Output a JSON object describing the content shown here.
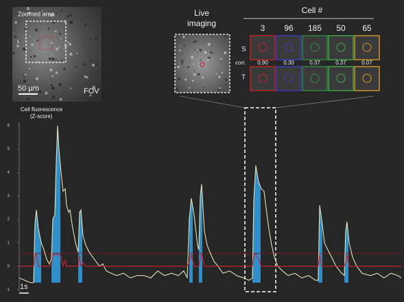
{
  "panels": {
    "fov": {
      "zoom_label": "Zoomed area",
      "scale_label": "50 µm",
      "label": "FOV"
    },
    "live": {
      "label": [
        "Live",
        "imaging"
      ]
    },
    "cells": {
      "title": "Cell #",
      "row_s": "S",
      "row_corr": "corr.",
      "row_t": "T",
      "items": [
        {
          "label": "3",
          "corr": "0.90",
          "color": "#c8232c"
        },
        {
          "label": "96",
          "corr": "0.30",
          "color": "#3c3cc0"
        },
        {
          "label": "185",
          "corr": "0.37",
          "color": "#2f8f40"
        },
        {
          "label": "50",
          "corr": "0.37",
          "color": "#3cb04a"
        },
        {
          "label": "65",
          "corr": "0.07",
          "color": "#d89a2a"
        }
      ]
    }
  },
  "chart_data": {
    "type": "line",
    "ylabel": [
      "Cell fluorescence",
      "(Z-score)"
    ],
    "x": [
      0,
      0.57,
      1.14,
      1.5,
      1.64,
      1.79,
      2,
      2.29,
      2.57,
      2.86,
      3.14,
      3.36,
      3.5,
      3.71,
      3.86,
      4,
      4.14,
      4.36,
      4.57,
      4.79,
      4.93,
      5.14,
      5.29,
      5.5,
      5.86,
      6.14,
      6.29,
      6.43,
      6.64,
      6.93,
      7.29,
      7.64,
      8,
      8.36,
      8.71,
      9.07,
      9.57,
      10.14,
      10.86,
      11.57,
      12.29,
      13,
      13.71,
      14.43,
      15.14,
      15.86,
      16.57,
      17.14,
      17.5,
      17.71,
      17.93,
      18.21,
      18.57,
      18.71,
      18.86,
      19,
      19.29,
      19.57,
      19.86,
      20.29,
      20.71,
      21.21,
      21.93,
      22.64,
      23.36,
      23.93,
      24.29,
      24.43,
      24.64,
      24.93,
      25.21,
      25.5,
      25.71,
      26,
      26.29,
      26.57,
      26.93,
      27.43,
      28,
      28.71,
      29.43,
      30.14,
      30.86,
      31.14,
      31.29,
      31.5,
      31.79,
      32.14,
      32.64,
      33,
      33.57,
      33.86,
      34,
      34.14,
      34.36,
      34.71,
      35.14,
      35.71,
      36.57,
      37.29,
      38,
      38.71,
      39.43,
      39.79
    ],
    "series": [
      {
        "color": "#e4e2b6",
        "values": [
          -0.5,
          -0.6,
          -0.7,
          -0.7,
          1.8,
          2.4,
          1.6,
          1.0,
          0.7,
          0.3,
          0.1,
          0.3,
          2.0,
          2.2,
          4.5,
          6.0,
          5.0,
          4.0,
          3.2,
          3.3,
          2.6,
          2.3,
          2.4,
          1.8,
          1.0,
          0.6,
          2.3,
          2.4,
          1.3,
          0.9,
          0.6,
          0.4,
          0.2,
          0.0,
          0.1,
          -0.2,
          -0.3,
          -0.4,
          -0.3,
          -0.5,
          -0.4,
          -0.4,
          -0.5,
          -0.2,
          -0.4,
          -0.3,
          -0.4,
          -0.2,
          -0.5,
          2.0,
          2.9,
          2.2,
          0.9,
          0.7,
          3.0,
          3.5,
          1.5,
          0.9,
          0.6,
          0.2,
          0.0,
          -0.3,
          -0.2,
          -0.4,
          -0.5,
          -0.6,
          -0.5,
          2.8,
          4.3,
          3.6,
          3.3,
          3.2,
          2.5,
          1.6,
          0.9,
          0.4,
          0.0,
          -0.2,
          -0.4,
          -0.3,
          -0.5,
          -0.4,
          -0.6,
          -0.6,
          2.6,
          2.0,
          1.0,
          0.7,
          0.3,
          0.0,
          -0.3,
          -0.4,
          1.5,
          1.9,
          1.0,
          0.4,
          0.0,
          -0.3,
          -0.4,
          -0.3,
          -0.5,
          -0.3,
          -0.4,
          -0.5
        ]
      },
      {
        "color": "#c8232c",
        "values": [
          0,
          0,
          0,
          0,
          0.5,
          0.5,
          0,
          0,
          0,
          0,
          0,
          0.1,
          0.5,
          0.5,
          0.5,
          0.5,
          0.5,
          0.4,
          0,
          0.25,
          0,
          0,
          0,
          0,
          0,
          0,
          0.45,
          0,
          0.15,
          0,
          0,
          0,
          0,
          0,
          0,
          0,
          0,
          0,
          0,
          0,
          0,
          0,
          0,
          0,
          0,
          0,
          0,
          0,
          0,
          0.2,
          0.5,
          0,
          0,
          0,
          0.3,
          0.55,
          0,
          0,
          0,
          0,
          0,
          0,
          0,
          0,
          0,
          0,
          0,
          0.5,
          0.5,
          0.3,
          0,
          0,
          0,
          0,
          0,
          0,
          0,
          0,
          0,
          0,
          0,
          0,
          0,
          0,
          0.5,
          0,
          0,
          0,
          0,
          0,
          0,
          0,
          0.2,
          0.5,
          0,
          0,
          0,
          0,
          0,
          0,
          0,
          0,
          0,
          0
        ]
      }
    ],
    "hlines": [
      {
        "value": 0.55,
        "color": "#7a1c22"
      }
    ],
    "spans": [
      [
        1.5,
        2.29
      ],
      [
        3.36,
        4.29
      ],
      [
        6.14,
        6.57
      ],
      [
        17.71,
        18.07
      ],
      [
        18.71,
        19.07
      ],
      [
        24.29,
        25.14
      ],
      [
        31.14,
        31.57
      ],
      [
        33.86,
        34.29
      ]
    ],
    "span_color": "#2f8fc9",
    "xlim": [
      0,
      39.79
    ],
    "ylim": [
      -1,
      6
    ],
    "yticks": [
      -1,
      0,
      1,
      2,
      3,
      4,
      5,
      6
    ],
    "scalebar": {
      "value": 1,
      "label": "1s"
    }
  }
}
